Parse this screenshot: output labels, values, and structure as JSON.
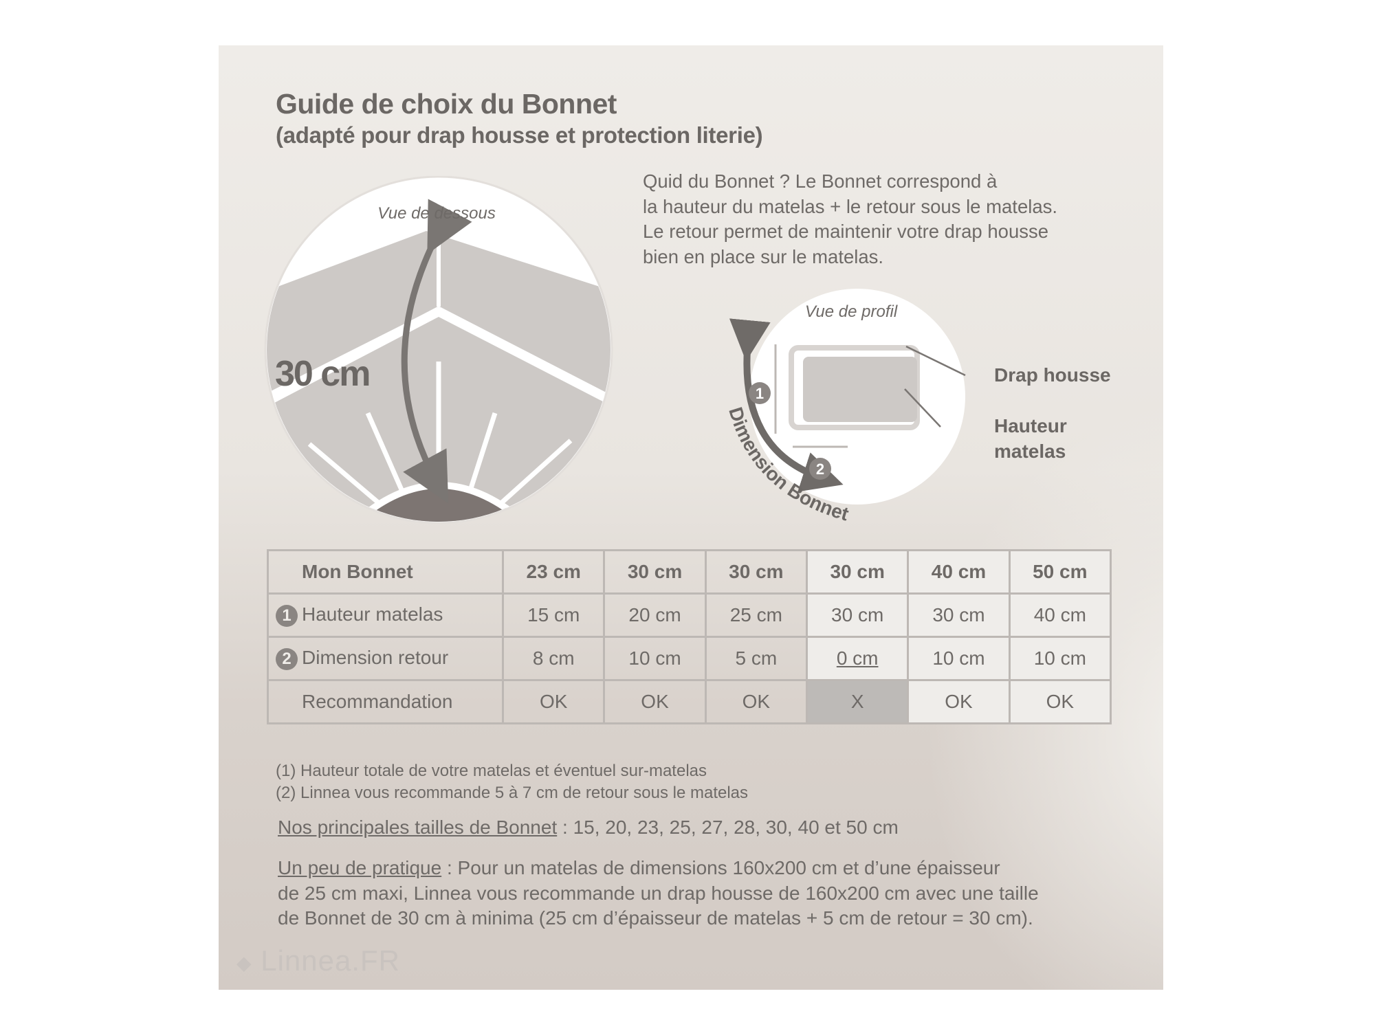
{
  "header": {
    "title": "Guide de choix du Bonnet",
    "subtitle": "(adapté pour drap housse et protection literie)"
  },
  "intro": {
    "lines": [
      "Quid du Bonnet ? Le Bonnet correspond à",
      "la hauteur du matelas + le retour sous le matelas.",
      "Le retour permet de maintenir votre drap housse",
      "bien en place sur le matelas."
    ]
  },
  "diagram_bottom": {
    "caption": "Vue de dessous",
    "measure": "30 cm"
  },
  "diagram_profile": {
    "caption": "Vue de profil",
    "arc_label": "Dimension Bonnet",
    "marker_1": "1",
    "marker_2": "2",
    "label_sheet": "Drap housse",
    "label_height_1": "Hauteur",
    "label_height_2": "matelas"
  },
  "table": {
    "header": [
      "Mon Bonnet",
      "23 cm",
      "30 cm",
      "30 cm",
      "30 cm",
      "40 cm",
      "50 cm"
    ],
    "rows": [
      {
        "num": "1",
        "label": "Hauteur matelas",
        "cells": [
          "15 cm",
          "20 cm",
          "25 cm",
          "30 cm",
          "30 cm",
          "40 cm"
        ]
      },
      {
        "num": "2",
        "label": "Dimension retour",
        "cells": [
          "8 cm",
          "10 cm",
          "5 cm",
          "0 cm",
          "10 cm",
          "10 cm"
        ]
      },
      {
        "num": "",
        "label": "Recommandation",
        "cells": [
          "OK",
          "OK",
          "OK",
          "X",
          "OK",
          "OK"
        ]
      }
    ]
  },
  "notes": [
    {
      "mark": "(1)",
      "text": "Hauteur totale de votre matelas et éventuel sur-matelas"
    },
    {
      "mark": "(2)",
      "text": "Linnea vous recommande 5 à 7 cm de retour sous le matelas"
    }
  ],
  "sizes": {
    "label": "Nos principales tailles de Bonnet",
    "value": " : 15, 20, 23, 25, 27, 28, 30, 40 et 50 cm"
  },
  "example": {
    "label": "Un peu de pratique",
    "line1": " : Pour un matelas de dimensions 160x200 cm et d’une épaisseur",
    "line2": "de 25 cm maxi, Linnea vous recommande un drap housse de 160x200 cm avec une taille",
    "line3": "de Bonnet de 30 cm à minima (25 cm d’épaisseur de matelas + 5 cm de retour = 30 cm)."
  },
  "logo": {
    "text": "Linnea.FR"
  },
  "colors": {
    "text": "#6e6a67",
    "circle_fill": "#ffffff",
    "mattress": "#cdc9c6",
    "arrow": "#7a7673",
    "cell_x": "#bdbab7"
  }
}
